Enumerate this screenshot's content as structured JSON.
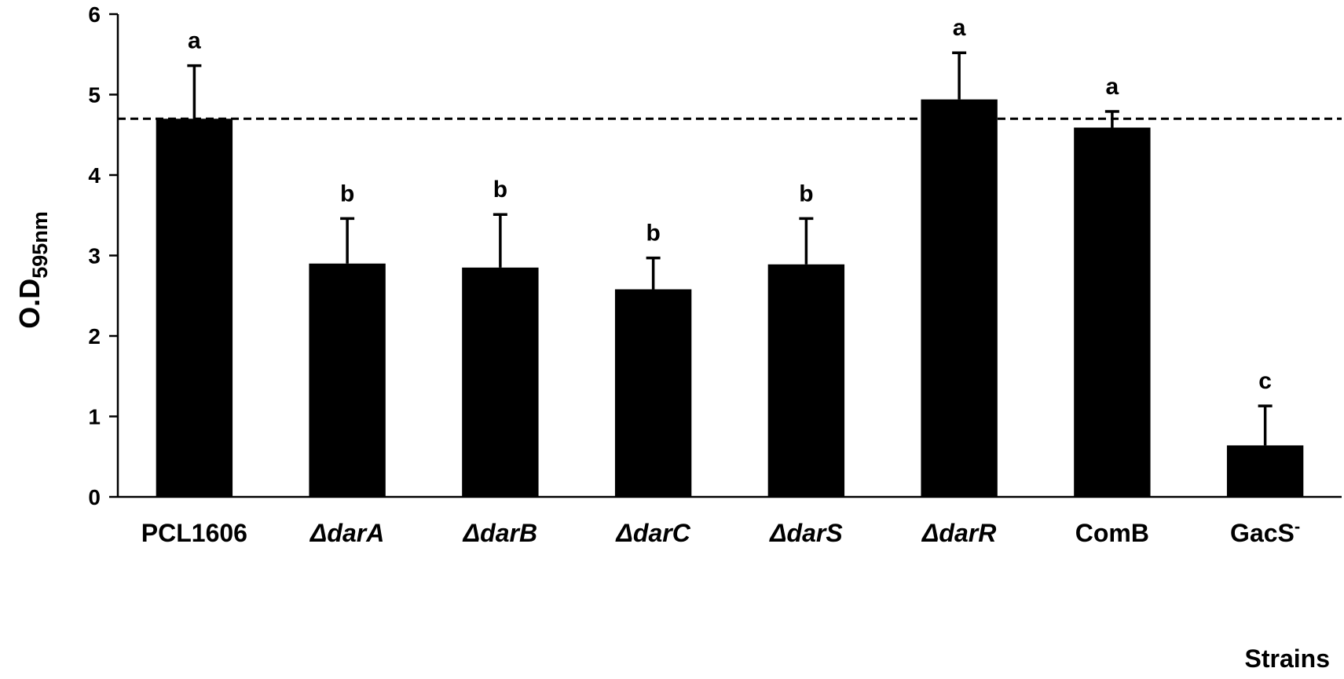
{
  "chart_data": {
    "type": "bar",
    "categories": [
      "PCL1606",
      "ΔdarA",
      "ΔdarB",
      "ΔdarC",
      "ΔdarS",
      "ΔdarR",
      "ComB",
      "GacS-"
    ],
    "category_labels": [
      {
        "text": "PCL1606",
        "italic": false,
        "sup": ""
      },
      {
        "text": "ΔdarA",
        "italic": true,
        "sup": ""
      },
      {
        "text": "ΔdarB",
        "italic": true,
        "sup": ""
      },
      {
        "text": "ΔdarC",
        "italic": true,
        "sup": ""
      },
      {
        "text": "ΔdarS",
        "italic": true,
        "sup": ""
      },
      {
        "text": "ΔdarR",
        "italic": true,
        "sup": ""
      },
      {
        "text": "ComB",
        "italic": false,
        "sup": ""
      },
      {
        "text": "GacS",
        "italic": false,
        "sup": "-"
      }
    ],
    "values": [
      4.7,
      2.9,
      2.85,
      2.58,
      2.89,
      4.94,
      4.59,
      0.64
    ],
    "error_bars": [
      0.66,
      0.56,
      0.66,
      0.39,
      0.57,
      0.58,
      0.2,
      0.49
    ],
    "significance_letters": [
      "a",
      "b",
      "b",
      "b",
      "b",
      "a",
      "a",
      "c"
    ],
    "reference_line": 4.7,
    "xlabel": "Strains",
    "ylabel_main": "O.D",
    "ylabel_sub": "595nm",
    "ylim": [
      0,
      6
    ],
    "yticks": [
      0,
      1,
      2,
      3,
      4,
      5,
      6
    ],
    "bar_color": "#000000",
    "grid": false,
    "legend": "none"
  }
}
